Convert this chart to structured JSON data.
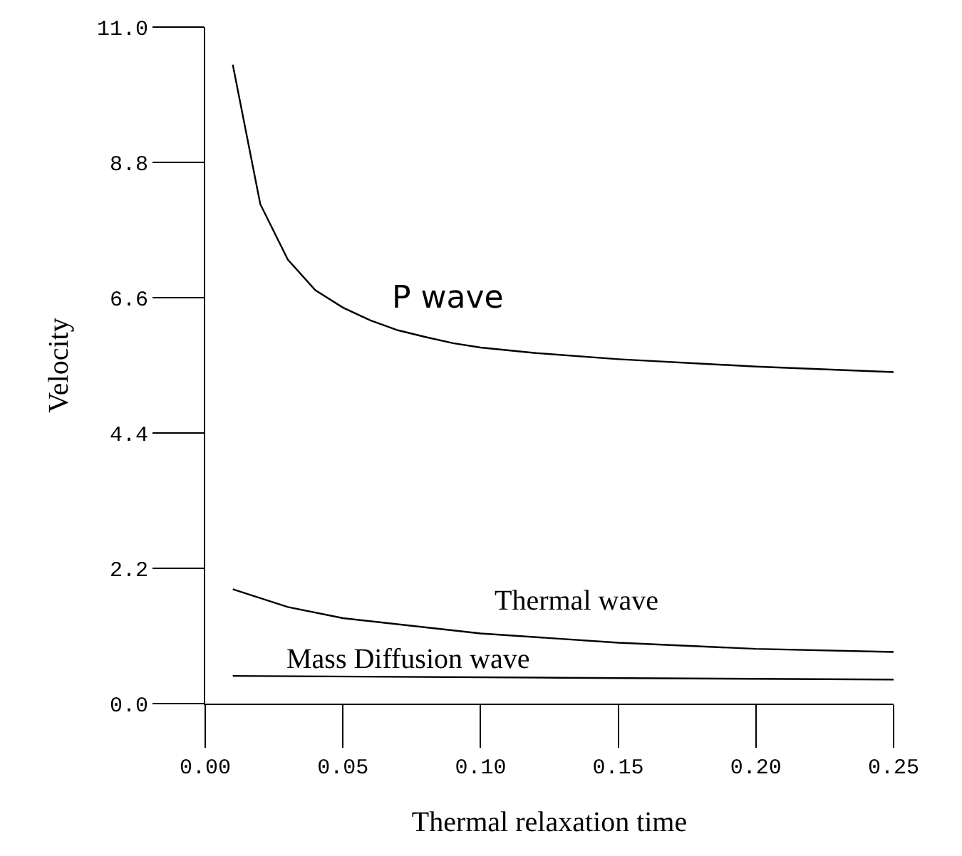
{
  "chart_data": {
    "type": "line",
    "xlabel": "Thermal relaxation time",
    "ylabel": "Velocity",
    "xlim": [
      0.0,
      0.25
    ],
    "xticks": [
      {
        "value": 0,
        "label": "0.00"
      },
      0.05,
      {
        "value": 0.1,
        "label": "0.10"
      },
      0.15,
      {
        "value": 0.2,
        "label": "0.20"
      },
      0.25
    ],
    "ylim": [
      0.0,
      11.0
    ],
    "yticks": [
      {
        "value": 0,
        "label": "0.0"
      },
      2.2,
      4.4,
      6.6,
      8.8,
      {
        "value": 11,
        "label": "11.0"
      }
    ],
    "grid": false,
    "legend": false,
    "marker": "none",
    "line_style": "solid",
    "series": [
      {
        "name": "P wave",
        "color": "#000000",
        "x": [
          0.01,
          0.02,
          0.03,
          0.04,
          0.05,
          0.06,
          0.07,
          0.08,
          0.09,
          0.1,
          0.12,
          0.15,
          0.2,
          0.25
        ],
        "values": [
          10.39,
          8.12,
          7.22,
          6.72,
          6.44,
          6.23,
          6.07,
          5.96,
          5.86,
          5.79,
          5.7,
          5.6,
          5.48,
          5.39
        ]
      },
      {
        "name": "Thermal wave",
        "color": "#000000",
        "x": [
          0.01,
          0.03,
          0.05,
          0.1,
          0.15,
          0.2,
          0.25
        ],
        "values": [
          1.86,
          1.57,
          1.39,
          1.14,
          0.99,
          0.89,
          0.84
        ]
      },
      {
        "name": "Mass Diffusion wave",
        "color": "#000000",
        "x": [
          0.01,
          0.13,
          0.25
        ],
        "values": [
          0.45,
          0.42,
          0.39
        ]
      }
    ]
  }
}
